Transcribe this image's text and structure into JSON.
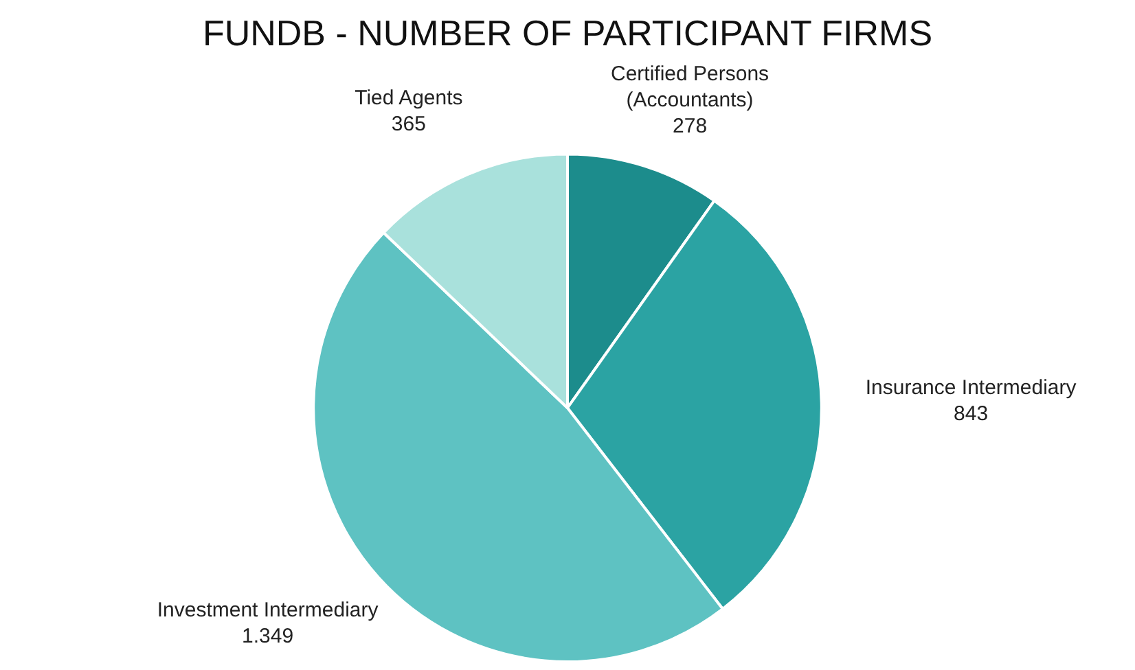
{
  "chart_data": {
    "type": "pie",
    "title": "FUNDB - NUMBER OF PARTICIPANT FIRMS",
    "categories": [
      "Certified Persons (Accountants)",
      "Insurance Intermediary",
      "Investment Intermediary",
      "Tied Agents"
    ],
    "values": [
      278,
      843,
      1349,
      365
    ],
    "value_labels": [
      "278",
      "843",
      "1.349",
      "365"
    ],
    "colors": [
      "#1c8c8c",
      "#2ba3a3",
      "#5ec2c2",
      "#a9e1dc"
    ],
    "legend": false
  }
}
